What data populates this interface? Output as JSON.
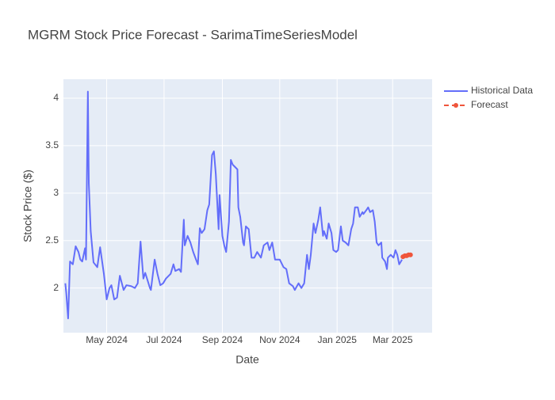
{
  "chart_data": {
    "type": "line",
    "title": "MGRM Stock Price Forecast - SarimaTimeSeriesModel",
    "x_label": "Date",
    "y_label": "Stock Price ($)",
    "xlim": [
      "2024-03-16",
      "2025-04-12"
    ],
    "xticks": [
      {
        "value": "2024-05-01",
        "label": "May 2024"
      },
      {
        "value": "2024-07-01",
        "label": "Jul 2024"
      },
      {
        "value": "2024-09-01",
        "label": "Sep 2024"
      },
      {
        "value": "2024-11-01",
        "label": "Nov 2024"
      },
      {
        "value": "2025-01-01",
        "label": "Jan 2025"
      },
      {
        "value": "2025-03-01",
        "label": "Mar 2025"
      }
    ],
    "ylim": [
      1.53,
      4.2
    ],
    "yticks": [
      2,
      2.5,
      3,
      3.5,
      4
    ],
    "grid": true,
    "legend": "top-right",
    "series": [
      {
        "name": "Historical Data",
        "color": "#636efa",
        "x": [
          "2024-03-18",
          "2024-03-19",
          "2024-03-21",
          "2024-03-23",
          "2024-03-26",
          "2024-03-29",
          "2024-04-01",
          "2024-04-03",
          "2024-04-05",
          "2024-04-08",
          "2024-04-09",
          "2024-04-11",
          "2024-04-12",
          "2024-04-14",
          "2024-04-17",
          "2024-04-21",
          "2024-04-24",
          "2024-04-28",
          "2024-05-01",
          "2024-05-04",
          "2024-05-06",
          "2024-05-09",
          "2024-05-12",
          "2024-05-15",
          "2024-05-19",
          "2024-05-22",
          "2024-05-27",
          "2024-05-31",
          "2024-06-03",
          "2024-06-06",
          "2024-06-09",
          "2024-06-11",
          "2024-06-16",
          "2024-06-17",
          "2024-06-21",
          "2024-06-24",
          "2024-06-27",
          "2024-06-30",
          "2024-07-03",
          "2024-07-08",
          "2024-07-11",
          "2024-07-13",
          "2024-07-17",
          "2024-07-19",
          "2024-07-22",
          "2024-07-23",
          "2024-07-26",
          "2024-07-29",
          "2024-08-01",
          "2024-08-04",
          "2024-08-06",
          "2024-08-08",
          "2024-08-10",
          "2024-08-13",
          "2024-08-16",
          "2024-08-18",
          "2024-08-21",
          "2024-08-23",
          "2024-08-25",
          "2024-08-28",
          "2024-08-29",
          "2024-09-01",
          "2024-09-03",
          "2024-09-05",
          "2024-09-08",
          "2024-09-09",
          "2024-09-10",
          "2024-09-12",
          "2024-09-14",
          "2024-09-17",
          "2024-09-18",
          "2024-09-20",
          "2024-09-23",
          "2024-09-24",
          "2024-09-26",
          "2024-09-29",
          "2024-10-02",
          "2024-10-05",
          "2024-10-08",
          "2024-10-12",
          "2024-10-15",
          "2024-10-19",
          "2024-10-21",
          "2024-10-24",
          "2024-10-27",
          "2024-11-01",
          "2024-11-05",
          "2024-11-08",
          "2024-11-11",
          "2024-11-15",
          "2024-11-17",
          "2024-11-21",
          "2024-11-24",
          "2024-11-27",
          "2024-11-30",
          "2024-12-02",
          "2024-12-04",
          "2024-12-07",
          "2024-12-09",
          "2024-12-12",
          "2024-12-14",
          "2024-12-17",
          "2024-12-18",
          "2024-12-21",
          "2024-12-23",
          "2024-12-26",
          "2024-12-28",
          "2024-12-31",
          "2025-01-02",
          "2025-01-05",
          "2025-01-07",
          "2025-01-10",
          "2025-01-13",
          "2025-01-16",
          "2025-01-18",
          "2025-01-20",
          "2025-01-23",
          "2025-01-25",
          "2025-01-28",
          "2025-01-29",
          "2025-02-01",
          "2025-02-03",
          "2025-02-05",
          "2025-02-08",
          "2025-02-10",
          "2025-02-12",
          "2025-02-14",
          "2025-02-17",
          "2025-02-18",
          "2025-02-21",
          "2025-02-23",
          "2025-02-24",
          "2025-02-27",
          "2025-03-02",
          "2025-03-04",
          "2025-03-06",
          "2025-03-08",
          "2025-03-11"
        ],
        "values": [
          2.05,
          1.95,
          1.68,
          2.28,
          2.25,
          2.44,
          2.38,
          2.3,
          2.28,
          2.42,
          2.3,
          4.07,
          3.1,
          2.6,
          2.27,
          2.22,
          2.43,
          2.15,
          1.88,
          2.0,
          2.03,
          1.88,
          1.9,
          2.13,
          1.98,
          2.03,
          2.02,
          2.0,
          2.05,
          2.49,
          2.1,
          2.16,
          2.0,
          1.98,
          2.3,
          2.15,
          2.03,
          2.05,
          2.1,
          2.15,
          2.25,
          2.18,
          2.2,
          2.17,
          2.72,
          2.45,
          2.55,
          2.48,
          2.38,
          2.3,
          2.25,
          2.63,
          2.58,
          2.62,
          2.82,
          2.88,
          3.4,
          3.44,
          3.2,
          2.62,
          2.98,
          2.55,
          2.45,
          2.38,
          2.7,
          3.0,
          3.35,
          3.3,
          3.28,
          3.25,
          2.85,
          2.75,
          2.48,
          2.45,
          2.65,
          2.62,
          2.32,
          2.32,
          2.38,
          2.32,
          2.45,
          2.48,
          2.4,
          2.48,
          2.3,
          2.3,
          2.22,
          2.2,
          2.05,
          2.02,
          1.98,
          2.05,
          2.0,
          2.05,
          2.35,
          2.2,
          2.35,
          2.68,
          2.58,
          2.72,
          2.85,
          2.55,
          2.6,
          2.52,
          2.68,
          2.58,
          2.4,
          2.38,
          2.4,
          2.65,
          2.5,
          2.48,
          2.45,
          2.62,
          2.68,
          2.85,
          2.85,
          2.75,
          2.8,
          2.78,
          2.82,
          2.85,
          2.8,
          2.82,
          2.7,
          2.48,
          2.45,
          2.48,
          2.32,
          2.28,
          2.2,
          2.32,
          2.35,
          2.32,
          2.4,
          2.35,
          2.25,
          2.3
        ]
      },
      {
        "name": "Forecast",
        "color": "#ef553b",
        "dash": true,
        "markers": true,
        "x": [
          "2025-03-12",
          "2025-03-14",
          "2025-03-16",
          "2025-03-18",
          "2025-03-20"
        ],
        "values": [
          2.33,
          2.34,
          2.34,
          2.35,
          2.35
        ]
      }
    ]
  }
}
